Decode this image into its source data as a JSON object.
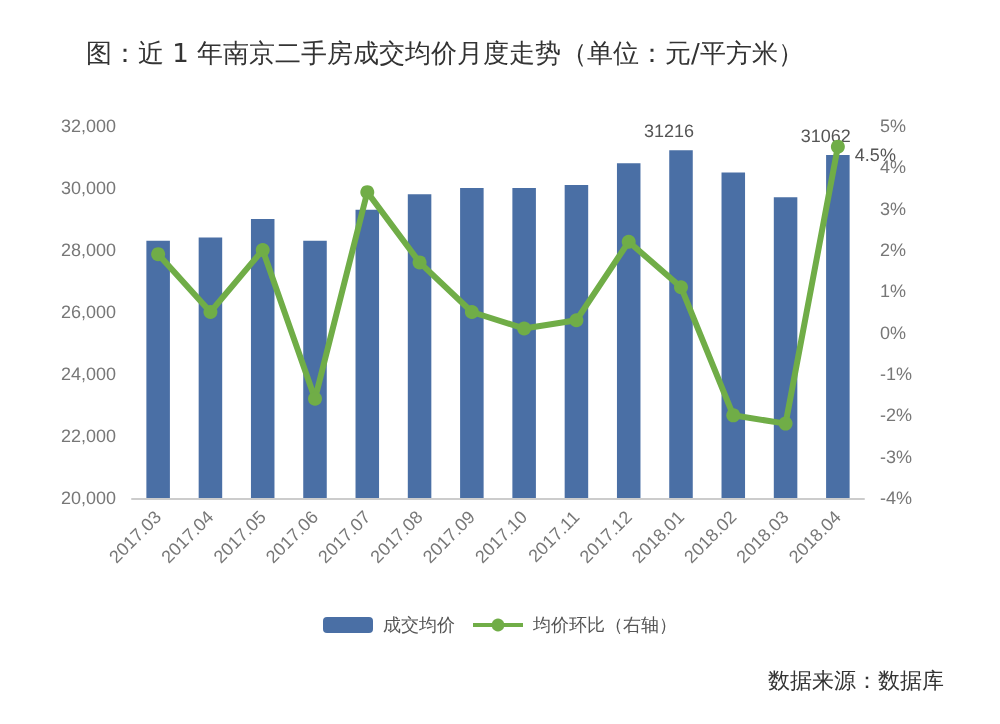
{
  "chart_data": {
    "type": "bar",
    "title": "图：近 1 年南京二手房成交均价月度走势（单位：元/平方米）",
    "categories": [
      "2017.03",
      "2017.04",
      "2017.05",
      "2017.06",
      "2017.07",
      "2017.08",
      "2017.09",
      "2017.10",
      "2017.11",
      "2017.12",
      "2018.01",
      "2018.02",
      "2018.03",
      "2018.04"
    ],
    "series": [
      {
        "name": "成交均价",
        "color": "#4a6fa5",
        "values": [
          28300,
          28400,
          29000,
          28300,
          29300,
          29800,
          30000,
          30000,
          30100,
          30800,
          31216,
          30500,
          29700,
          31062
        ],
        "value_labels": [
          null,
          null,
          null,
          null,
          null,
          null,
          null,
          null,
          null,
          null,
          "31216",
          null,
          null,
          "31062"
        ]
      },
      {
        "name": "均价环比（右轴）",
        "type": "line",
        "axis": "y2",
        "color": "#70ad47",
        "values": [
          1.9,
          0.5,
          2.0,
          -1.6,
          3.4,
          1.7,
          0.5,
          0.1,
          0.3,
          2.2,
          1.1,
          -2.0,
          -2.2,
          4.5
        ],
        "value_labels": [
          null,
          null,
          null,
          null,
          null,
          null,
          null,
          null,
          null,
          null,
          null,
          null,
          null,
          "4.5%"
        ]
      }
    ],
    "ylim": [
      20000,
      32000
    ],
    "yticks": [
      {
        "value": 20000,
        "label": "20,000"
      },
      {
        "value": 22000,
        "label": "22,000"
      },
      {
        "value": 24000,
        "label": "24,000"
      },
      {
        "value": 26000,
        "label": "26,000"
      },
      {
        "value": 28000,
        "label": "28,000"
      },
      {
        "value": 30000,
        "label": "30,000"
      },
      {
        "value": 32000,
        "label": "32,000"
      }
    ],
    "y2lim": [
      -4,
      5
    ],
    "y2ticks": [
      {
        "value": -4,
        "label": "-4%"
      },
      {
        "value": -3,
        "label": "-3%"
      },
      {
        "value": -2,
        "label": "-2%"
      },
      {
        "value": -1,
        "label": "-1%"
      },
      {
        "value": 0,
        "label": "0%"
      },
      {
        "value": 1,
        "label": "1%"
      },
      {
        "value": 2,
        "label": "2%"
      },
      {
        "value": 3,
        "label": "3%"
      },
      {
        "value": 4,
        "label": "4%"
      },
      {
        "value": 5,
        "label": "5%"
      }
    ],
    "marker": "circle",
    "legend": "bottom",
    "annotations": [
      "数据来源：数据库"
    ]
  }
}
